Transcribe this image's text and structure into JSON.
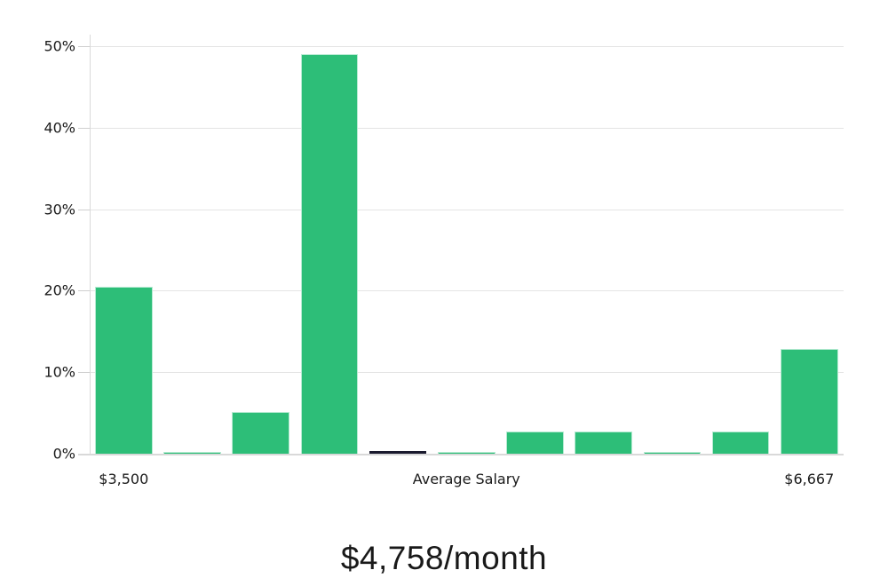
{
  "chart_data": {
    "type": "bar",
    "title": "$4,758/month",
    "xlabel": "",
    "ylabel": "",
    "ylim": [
      0,
      50
    ],
    "grid": true,
    "legend": false,
    "y_ticks": [
      0,
      10,
      20,
      30,
      40,
      50
    ],
    "y_tick_labels": [
      "0%",
      "10%",
      "20%",
      "30%",
      "40%",
      "50%"
    ],
    "values": [
      20.5,
      0.2,
      5.1,
      49,
      0.3,
      0.2,
      2.7,
      2.7,
      0.2,
      2.7,
      12.9
    ],
    "highlight_bar_index": 4,
    "x_tick_labels": [
      {
        "label": "$3,500",
        "bar_index": 0
      },
      {
        "label": "Average Salary",
        "bar_index": 5
      },
      {
        "label": "$6,667",
        "bar_index": 10
      }
    ],
    "colors": {
      "bar": "#2dbe78",
      "bar_edge": "#b6ead2",
      "highlight_bar": "#1b1b2f",
      "gridline": "#e4e4e4",
      "axis": "#d9d9d9",
      "text": "#1a1a1a"
    }
  }
}
